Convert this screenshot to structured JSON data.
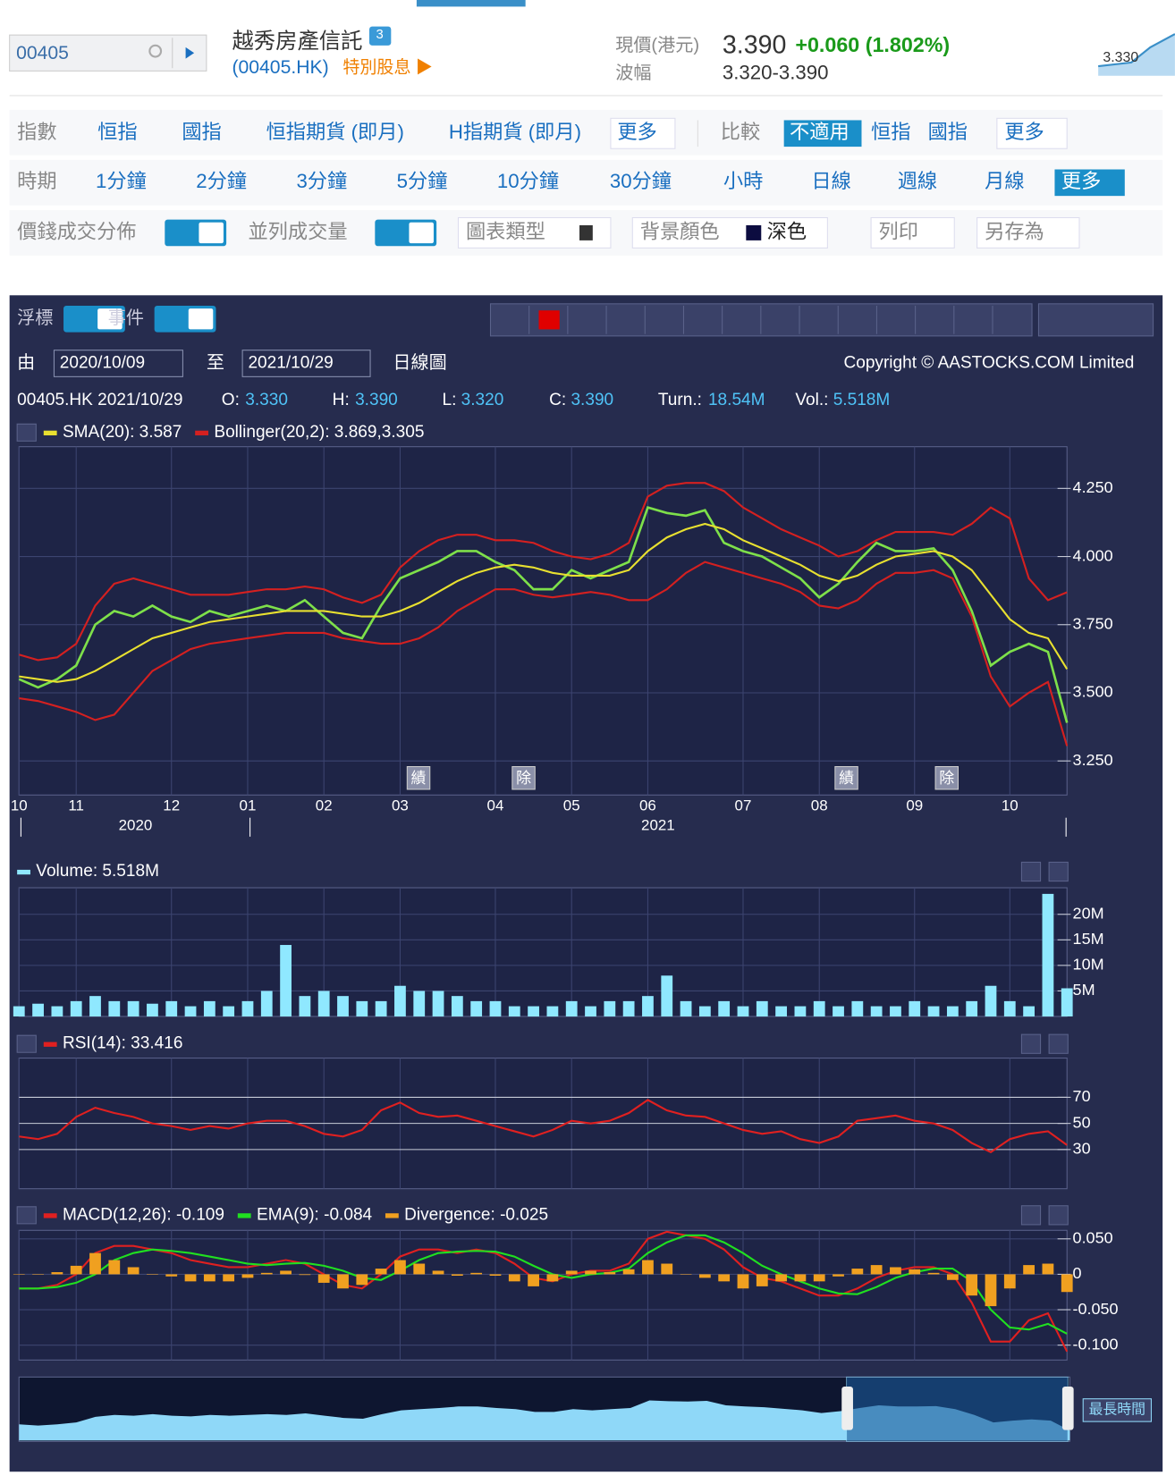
{
  "header": {
    "code": "00405",
    "name": "越秀房產信託",
    "badge": "3",
    "ticker": "(00405.HK)",
    "special": "特別股息 ▶",
    "price_label": "現價(港元)",
    "price": "3.390",
    "change": "+0.060 (1.802%)",
    "range_label": "波幅",
    "range": "3.320-3.390",
    "mini_value": "3.330"
  },
  "toolbar": {
    "index_label": "指數",
    "index_items": [
      "恒指",
      "國指",
      "恒指期貨 (即月)",
      "H指期貨 (即月)"
    ],
    "index_more": "更多",
    "compare_label": "比較",
    "compare_items": [
      "不適用",
      "恒指",
      "國指"
    ],
    "compare_more": "更多",
    "period_label": "時期",
    "period_items": [
      "1分鐘",
      "2分鐘",
      "3分鐘",
      "5分鐘",
      "10分鐘",
      "30分鐘",
      "小時",
      "日線",
      "週線",
      "月線"
    ],
    "period_more": "更多",
    "volume_dist": "價錢成交分佈",
    "side_volume": "並列成交量",
    "chart_type": "圖表類型",
    "background": "背景顏色",
    "background_value": "深色",
    "print": "列印",
    "save_as": "另存為"
  },
  "panel": {
    "cursor": "浮標",
    "events": "事件",
    "from": "由",
    "from_date": "2020/10/09",
    "to": "至",
    "to_date": "2021/10/29",
    "interval": "日線圖",
    "copyright": "Copyright © AASTOCKS.COM Limited",
    "info": {
      "id": "00405.HK 2021/10/29",
      "o_label": "O:",
      "o": "3.330",
      "h_label": "H:",
      "h": "3.390",
      "l_label": "L:",
      "l": "3.320",
      "c_label": "C:",
      "c": "3.390",
      "turn_label": "Turn.:",
      "turn": "18.54M",
      "vol_label": "Vol.:",
      "vol": "5.518M"
    },
    "event_marks": [
      "績",
      "除",
      "績",
      "除"
    ],
    "years": [
      "2020",
      "2021"
    ]
  },
  "chart_data": [
    {
      "type": "line",
      "categories": [
        "10",
        null,
        null,
        "11",
        null,
        null,
        null,
        null,
        "12",
        null,
        null,
        null,
        "01",
        null,
        null,
        null,
        "02",
        null,
        null,
        null,
        "03",
        null,
        null,
        null,
        null,
        "04",
        null,
        null,
        null,
        "05",
        null,
        null,
        null,
        "06",
        null,
        null,
        null,
        null,
        "07",
        null,
        null,
        null,
        "08",
        null,
        null,
        null,
        null,
        "09",
        null,
        null,
        null,
        null,
        "10",
        null,
        null,
        null
      ],
      "ylim": [
        3.125,
        4.403
      ],
      "yticks": [
        {
          "value": 3.25,
          "label": "3.250"
        },
        {
          "value": 3.5,
          "label": "3.500"
        },
        {
          "value": 3.75,
          "label": "3.750"
        },
        {
          "value": 4,
          "label": "4.000"
        },
        {
          "value": 4.25,
          "label": "4.250"
        }
      ],
      "grid": true,
      "series": [
        {
          "color": "#7ee04a",
          "values": [
            3.55,
            3.52,
            3.55,
            3.6,
            3.75,
            3.8,
            3.78,
            3.82,
            3.78,
            3.76,
            3.8,
            3.78,
            3.8,
            3.82,
            3.8,
            3.84,
            3.78,
            3.72,
            3.7,
            3.82,
            3.92,
            3.95,
            3.98,
            4.02,
            4.02,
            3.98,
            3.95,
            3.88,
            3.88,
            3.95,
            3.92,
            3.95,
            3.98,
            4.18,
            4.16,
            4.15,
            4.17,
            4.05,
            4.02,
            4.0,
            3.96,
            3.92,
            3.85,
            3.9,
            3.98,
            4.05,
            4.02,
            4.02,
            4.03,
            3.95,
            3.8,
            3.6,
            3.65,
            3.68,
            3.65,
            3.39
          ]
        },
        {
          "name": "SMA(20): 3.587",
          "color": "#e8e030",
          "values": [
            3.56,
            3.55,
            3.54,
            3.55,
            3.58,
            3.62,
            3.66,
            3.7,
            3.72,
            3.74,
            3.76,
            3.77,
            3.78,
            3.79,
            3.8,
            3.8,
            3.8,
            3.79,
            3.78,
            3.78,
            3.8,
            3.83,
            3.87,
            3.91,
            3.94,
            3.96,
            3.97,
            3.96,
            3.94,
            3.93,
            3.93,
            3.93,
            3.95,
            4.02,
            4.07,
            4.1,
            4.12,
            4.1,
            4.06,
            4.03,
            4.0,
            3.97,
            3.93,
            3.91,
            3.93,
            3.97,
            4.0,
            4.01,
            4.02,
            4.0,
            3.95,
            3.86,
            3.77,
            3.72,
            3.7,
            3.587
          ]
        },
        {
          "name": "Bollinger(20,2): 3.869,3.305",
          "color": "#d42020",
          "values": [
            3.64,
            3.62,
            3.63,
            3.68,
            3.82,
            3.9,
            3.92,
            3.9,
            3.88,
            3.86,
            3.86,
            3.86,
            3.87,
            3.88,
            3.88,
            3.89,
            3.88,
            3.85,
            3.83,
            3.86,
            3.96,
            4.02,
            4.06,
            4.08,
            4.08,
            4.06,
            4.06,
            4.05,
            4.02,
            4.0,
            3.99,
            4.01,
            4.05,
            4.22,
            4.26,
            4.27,
            4.27,
            4.24,
            4.18,
            4.14,
            4.1,
            4.07,
            4.04,
            4.0,
            4.02,
            4.06,
            4.09,
            4.09,
            4.09,
            4.08,
            4.12,
            4.18,
            4.14,
            3.92,
            3.84,
            3.869
          ]
        },
        {
          "color": "#d42020",
          "values": [
            3.48,
            3.47,
            3.45,
            3.43,
            3.4,
            3.42,
            3.5,
            3.58,
            3.62,
            3.66,
            3.68,
            3.69,
            3.7,
            3.71,
            3.72,
            3.72,
            3.72,
            3.7,
            3.69,
            3.68,
            3.68,
            3.7,
            3.74,
            3.8,
            3.84,
            3.88,
            3.88,
            3.86,
            3.85,
            3.86,
            3.87,
            3.86,
            3.84,
            3.84,
            3.88,
            3.94,
            3.98,
            3.96,
            3.94,
            3.92,
            3.9,
            3.87,
            3.82,
            3.81,
            3.84,
            3.9,
            3.94,
            3.94,
            3.95,
            3.92,
            3.78,
            3.56,
            3.45,
            3.5,
            3.54,
            3.305
          ]
        }
      ]
    },
    {
      "type": "bar",
      "ylim": [
        0,
        25.2
      ],
      "yticks": [
        {
          "value": 5,
          "label": "5M"
        },
        {
          "value": 10,
          "label": "10M"
        },
        {
          "value": 15,
          "label": "15M"
        },
        {
          "value": 20,
          "label": "20M"
        }
      ],
      "grid": true,
      "series": [
        {
          "name": "Volume: 5.518M",
          "color": "#8fe8ff",
          "values": [
            2,
            2.5,
            2,
            3,
            4,
            3,
            3,
            2.5,
            3,
            2,
            3,
            2,
            3,
            5,
            14,
            4,
            5,
            4,
            3,
            3,
            6,
            5,
            5,
            4,
            3,
            3,
            2,
            2,
            2,
            3,
            2,
            3,
            3,
            4,
            8,
            3,
            2,
            3,
            2,
            3,
            2,
            2,
            3,
            2,
            3,
            2,
            2,
            3,
            2,
            2,
            3,
            6,
            3,
            2,
            24,
            5.518
          ]
        }
      ]
    },
    {
      "type": "line",
      "ylim": [
        0,
        100
      ],
      "yticks": [
        30,
        50,
        70
      ],
      "grid": true,
      "series": [
        {
          "name": "RSI(14): 33.416",
          "color": "#e02020",
          "values": [
            40,
            38,
            42,
            55,
            62,
            58,
            55,
            50,
            48,
            45,
            48,
            46,
            50,
            52,
            52,
            48,
            42,
            40,
            45,
            60,
            66,
            58,
            55,
            56,
            52,
            48,
            44,
            40,
            45,
            52,
            50,
            52,
            58,
            68,
            60,
            56,
            55,
            50,
            45,
            42,
            44,
            38,
            35,
            40,
            52,
            54,
            56,
            52,
            50,
            45,
            35,
            28,
            38,
            42,
            44,
            33.416
          ]
        }
      ]
    },
    {
      "type": "line",
      "ylim": [
        -0.121,
        0.062
      ],
      "yticks": [
        {
          "value": -0.1,
          "label": "-0.100"
        },
        {
          "value": -0.05,
          "label": "-0.050"
        },
        0,
        {
          "value": 0.05,
          "label": "0.050"
        }
      ],
      "grid": true,
      "series": [
        {
          "name": "MACD(12,26): -0.109",
          "color": "#e02020",
          "values": [
            -0.02,
            -0.02,
            -0.015,
            0,
            0.03,
            0.04,
            0.04,
            0.035,
            0.03,
            0.02,
            0.015,
            0.01,
            0.01,
            0.015,
            0.02,
            0.015,
            0,
            -0.015,
            -0.02,
            0,
            0.025,
            0.035,
            0.035,
            0.03,
            0.035,
            0.03,
            0.015,
            -0.005,
            -0.01,
            0,
            0.005,
            0.005,
            0.015,
            0.05,
            0.06,
            0.055,
            0.05,
            0.035,
            0.01,
            -0.005,
            -0.01,
            -0.02,
            -0.03,
            -0.03,
            -0.02,
            -0.005,
            0.005,
            0.01,
            0.01,
            0,
            -0.04,
            -0.095,
            -0.095,
            -0.065,
            -0.055,
            -0.109
          ]
        },
        {
          "name": "EMA(9): -0.084",
          "color": "#20e020",
          "values": [
            -0.02,
            -0.02,
            -0.018,
            -0.012,
            0,
            0.02,
            0.03,
            0.035,
            0.033,
            0.03,
            0.025,
            0.02,
            0.015,
            0.013,
            0.015,
            0.016,
            0.012,
            0.005,
            -0.005,
            -0.008,
            0.005,
            0.02,
            0.03,
            0.032,
            0.033,
            0.032,
            0.025,
            0.012,
            0,
            -0.005,
            0,
            0.002,
            0.008,
            0.03,
            0.045,
            0.055,
            0.055,
            0.045,
            0.03,
            0.012,
            0,
            -0.01,
            -0.02,
            -0.027,
            -0.028,
            -0.018,
            -0.005,
            0.003,
            0.008,
            0.008,
            -0.01,
            -0.05,
            -0.075,
            -0.078,
            -0.07,
            -0.084
          ]
        },
        {
          "name": "Divergence: -0.025",
          "color": "#f0a020",
          "type": "bar",
          "values": [
            0,
            0,
            0.003,
            0.012,
            0.03,
            0.02,
            0.01,
            0,
            -0.003,
            -0.01,
            -0.01,
            -0.01,
            -0.005,
            0.002,
            0.005,
            -0.001,
            -0.012,
            -0.02,
            -0.015,
            0.008,
            0.02,
            0.015,
            0.005,
            -0.002,
            0.002,
            -0.002,
            -0.01,
            -0.017,
            -0.01,
            0.005,
            0.005,
            0.003,
            0.007,
            0.02,
            0.015,
            0,
            -0.005,
            -0.01,
            -0.02,
            -0.017,
            -0.01,
            -0.01,
            -0.01,
            -0.003,
            0.008,
            0.013,
            0.01,
            0.007,
            0.002,
            -0.008,
            -0.03,
            -0.045,
            -0.02,
            0.013,
            0.015,
            -0.025
          ]
        }
      ]
    }
  ],
  "navigator": {
    "button": "最長時間"
  }
}
